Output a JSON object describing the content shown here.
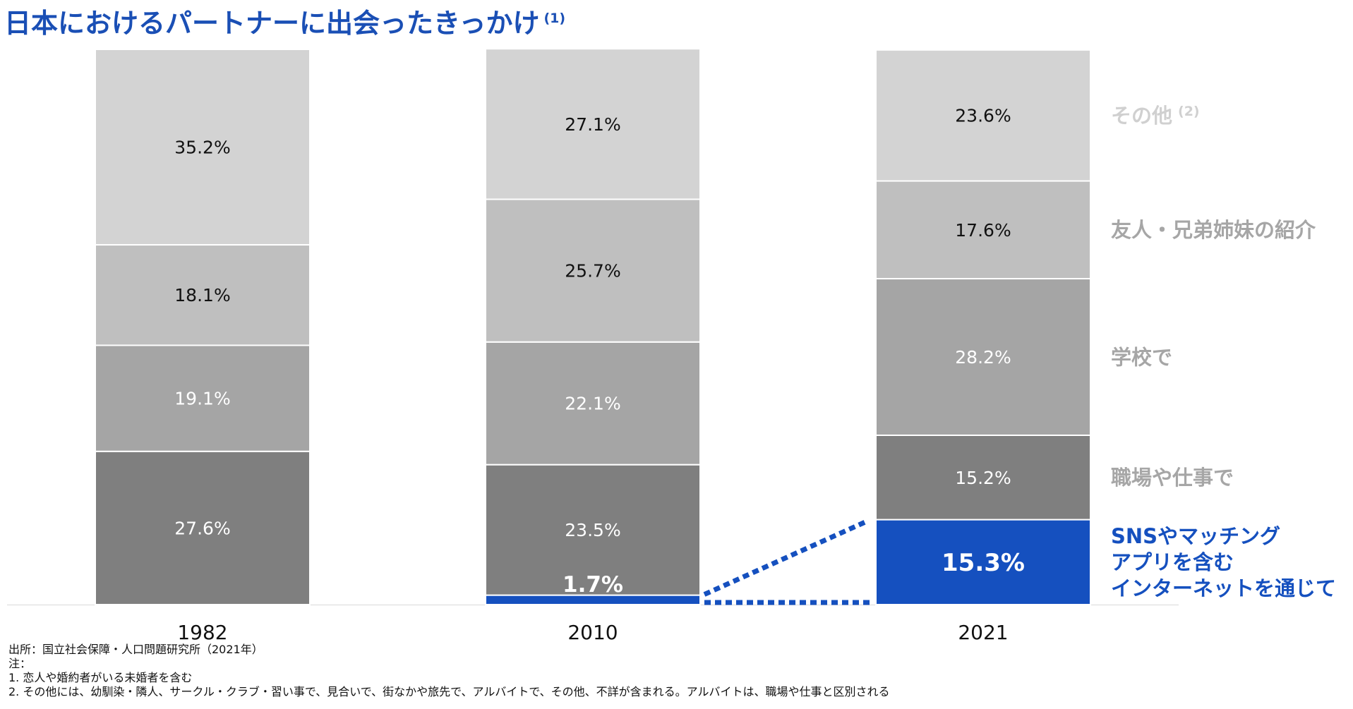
{
  "title": "日本におけるパートナーに出会ったきっかけ",
  "title_note": "(1)",
  "chart_data": {
    "type": "bar",
    "stacked": true,
    "categories": [
      "1982",
      "2010",
      "2021"
    ],
    "ylim": [
      0,
      100
    ],
    "series": [
      {
        "name": "SNSやマッチングアプリを含むインターネットを通じて",
        "values": [
          0,
          1.7,
          15.3
        ],
        "color": "#1550bf",
        "labels": [
          "",
          "1.7%",
          "15.3%"
        ]
      },
      {
        "name": "職場や仕事で",
        "values": [
          27.6,
          23.5,
          15.2
        ],
        "color": "#7f7f7f",
        "labels": [
          "27.6%",
          "23.5%",
          "15.2%"
        ]
      },
      {
        "name": "学校で",
        "values": [
          19.1,
          22.1,
          28.2
        ],
        "color": "#a5a5a5",
        "labels": [
          "19.1%",
          "22.1%",
          "28.2%"
        ]
      },
      {
        "name": "友人・兄弟姉妹の紹介",
        "values": [
          18.1,
          25.7,
          17.6
        ],
        "color": "#bfbfbf",
        "labels": [
          "18.1%",
          "25.7%",
          "17.6%"
        ]
      },
      {
        "name": "その他",
        "note": "(2)",
        "values": [
          35.2,
          27.1,
          23.6
        ],
        "color": "#d3d3d3",
        "labels": [
          "35.2%",
          "27.1%",
          "23.6%"
        ]
      }
    ],
    "legend_lines": {
      "SNSやマッチングアプリを含むインターネットを通じて": [
        "SNSやマッチング",
        "アプリを含む",
        "インターネットを通じて"
      ]
    },
    "legend_colors": [
      "#1550bf",
      "#7f7f7f",
      "#a5a5a5",
      "#bfbfbf",
      "#d3d3d3"
    ],
    "highlight_color": "#1550bf"
  },
  "footer": {
    "source": "出所：国立社会保障・人口問題研究所（2021年）",
    "notes_heading": "注：",
    "note1": "1.  恋人や婚約者がいる未婚者を含む",
    "note2": "2.  その他には、幼馴染・隣人、サークル・クラブ・習い事で、見合いで、街なかや旅先で、アルバイトで、その他、不詳が含まれる。アルバイトは、職場や仕事と区別される"
  }
}
